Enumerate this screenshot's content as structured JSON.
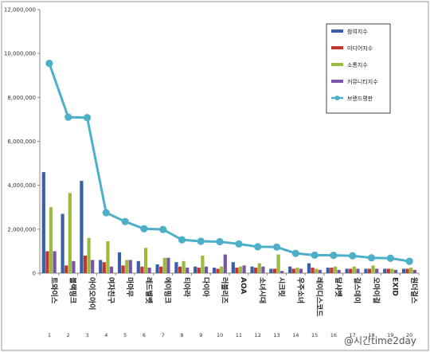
{
  "chart_data": {
    "type": "bar",
    "ylim": [
      0,
      12000000
    ],
    "yticks": [
      "0",
      "2,000,000",
      "4,000,000",
      "6,000,000",
      "8,000,000",
      "10,000,000",
      "12,000,000"
    ],
    "ytick_values": [
      0,
      2000000,
      4000000,
      6000000,
      8000000,
      10000000,
      12000000
    ],
    "categories": [
      "트와이스",
      "블랙핑크",
      "아이오아이",
      "여자친구",
      "마마무",
      "레드벨벳",
      "에이핑크",
      "티아라",
      "다이아",
      "러블리즈",
      "AOA",
      "소녀시대",
      "시크릿",
      "우주소녀",
      "레이디스코드",
      "달샤벳",
      "걸스데이",
      "오마이걸",
      "EXID",
      "원더걸스"
    ],
    "ranks": [
      "1",
      "2",
      "3",
      "4",
      "5",
      "6",
      "7",
      "8",
      "9",
      "10",
      "11",
      "12",
      "13",
      "14",
      "15",
      "16",
      "17",
      "18",
      "19",
      "20"
    ],
    "series": [
      {
        "name": "참여지수",
        "color": "#3a5fa8",
        "values": [
          4600000,
          2700000,
          4200000,
          600000,
          950000,
          550000,
          400000,
          500000,
          300000,
          250000,
          500000,
          300000,
          200000,
          300000,
          450000,
          250000,
          200000,
          200000,
          200000,
          200000
        ]
      },
      {
        "name": "미디어지수",
        "color": "#c0392b",
        "values": [
          1000000,
          350000,
          800000,
          500000,
          350000,
          300000,
          300000,
          300000,
          250000,
          200000,
          250000,
          250000,
          200000,
          200000,
          250000,
          250000,
          200000,
          200000,
          200000,
          200000
        ]
      },
      {
        "name": "소통지수",
        "color": "#9bbb3c",
        "values": [
          3000000,
          3650000,
          1600000,
          1450000,
          600000,
          1150000,
          700000,
          550000,
          800000,
          300000,
          300000,
          450000,
          850000,
          250000,
          200000,
          300000,
          300000,
          350000,
          200000,
          250000
        ]
      },
      {
        "name": "커뮤니티지수",
        "color": "#7a54a8",
        "values": [
          1000000,
          550000,
          600000,
          300000,
          600000,
          250000,
          700000,
          250000,
          300000,
          850000,
          350000,
          300000,
          100000,
          200000,
          150000,
          150000,
          200000,
          200000,
          150000,
          150000
        ]
      }
    ],
    "line": {
      "name": "브랜드평판",
      "color": "#4bb0c8",
      "values": [
        9550000,
        7100000,
        7080000,
        2750000,
        2350000,
        2020000,
        1990000,
        1520000,
        1450000,
        1430000,
        1330000,
        1200000,
        1190000,
        900000,
        820000,
        810000,
        790000,
        700000,
        680000,
        540000
      ]
    },
    "legend_position": "top-right",
    "grid": false
  },
  "watermark": "@시간time2day"
}
